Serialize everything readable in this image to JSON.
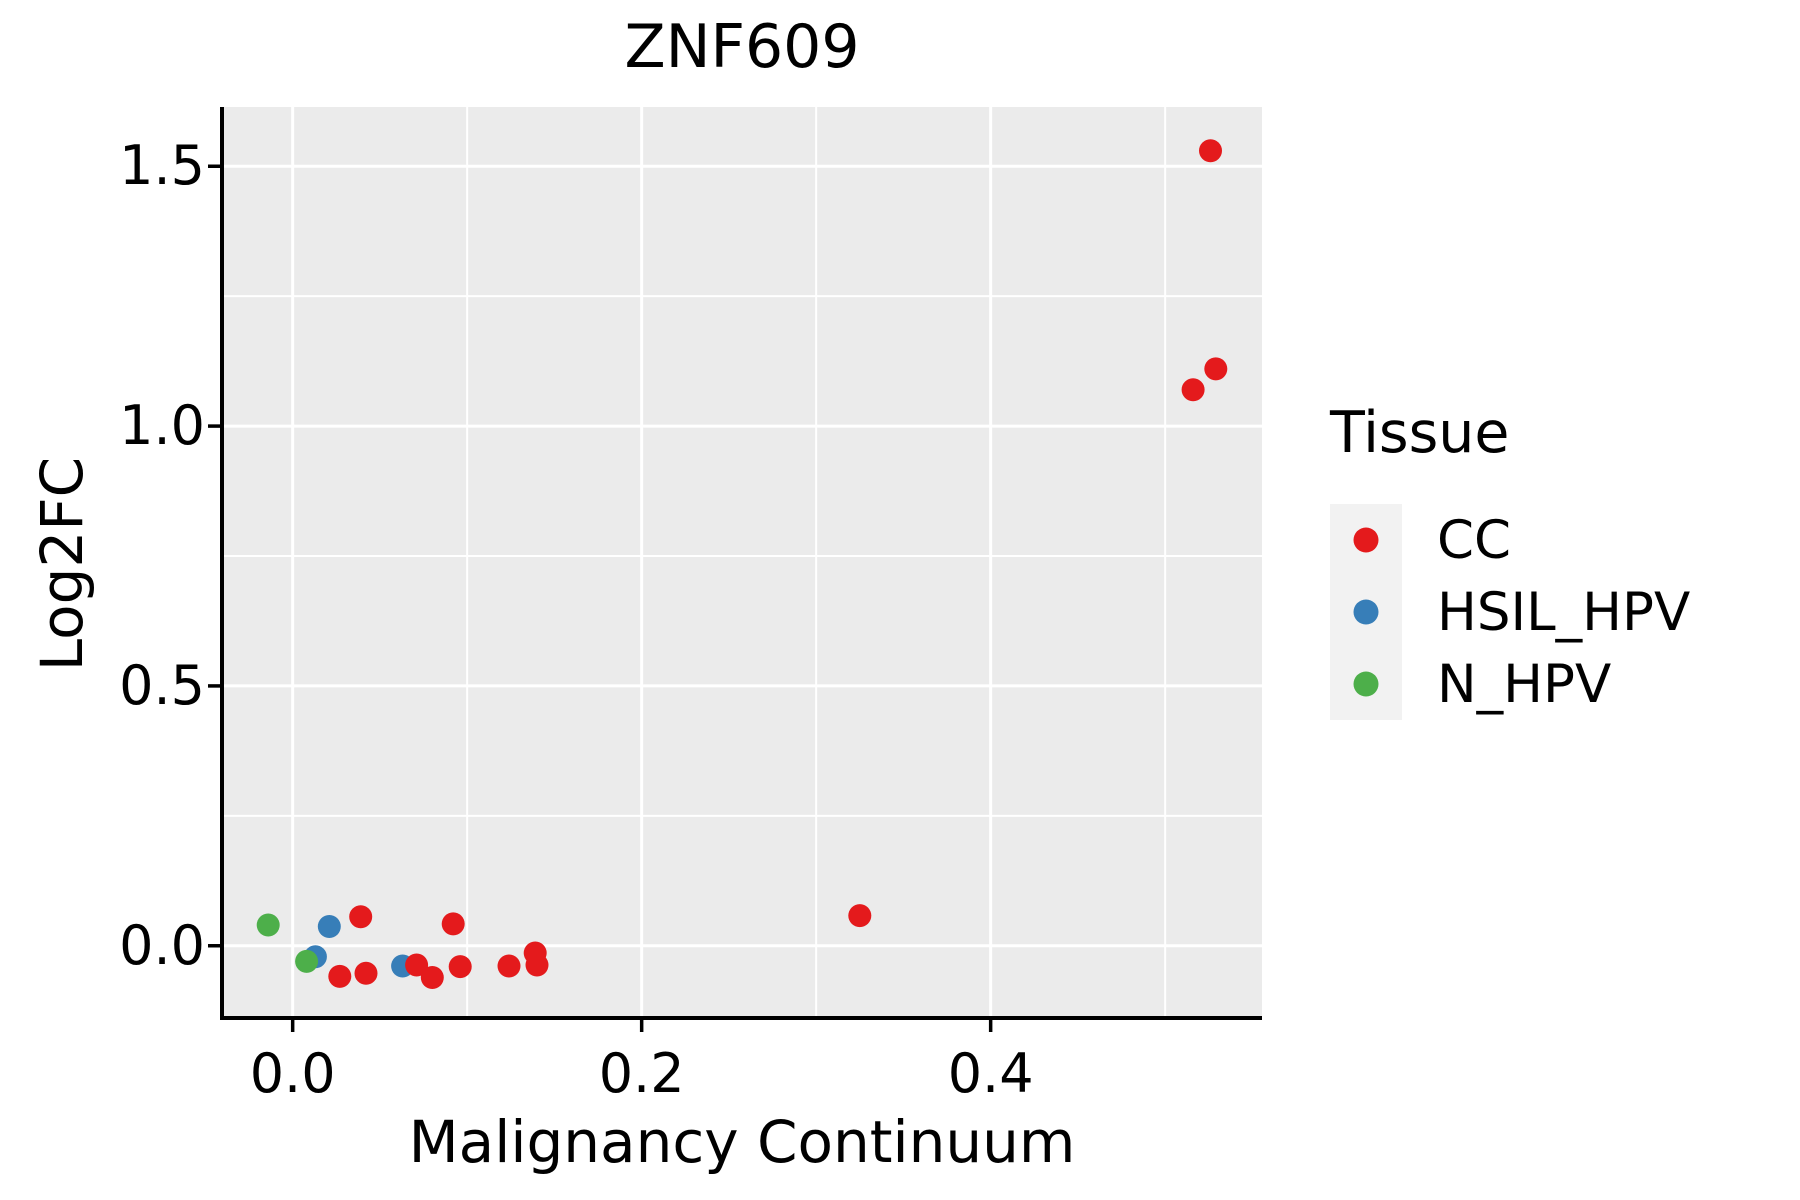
{
  "chart_data": {
    "type": "scatter",
    "title": "ZNF609",
    "xlabel": "Malignancy Continuum",
    "ylabel": "Log2FC",
    "xlim": [
      -0.0405,
      0.5555
    ],
    "ylim": [
      -0.139,
      1.614
    ],
    "x_ticks": [
      0.0,
      0.2,
      0.4
    ],
    "x_tick_labels": [
      "0.0",
      "0.2",
      "0.4"
    ],
    "x_minor_ticks": [
      0.1,
      0.3,
      0.5
    ],
    "y_ticks": [
      0.0,
      0.5,
      1.0,
      1.5
    ],
    "y_tick_labels": [
      "0.0",
      "0.5",
      "1.0",
      "1.5"
    ],
    "y_minor_ticks": [
      0.25,
      0.75,
      1.25
    ],
    "grid": true,
    "legend_position": "right",
    "point_radius": 11.5,
    "series": [
      {
        "name": "HSIL_HPV",
        "color": "#377eb8",
        "points": [
          [
            0.021,
            0.037
          ],
          [
            0.013,
            -0.021
          ],
          [
            0.063,
            -0.039
          ]
        ]
      },
      {
        "name": "CC",
        "color": "#e41a1c",
        "points": [
          [
            0.039,
            0.056
          ],
          [
            0.092,
            0.042
          ],
          [
            0.027,
            -0.059
          ],
          [
            0.042,
            -0.053
          ],
          [
            0.071,
            -0.037
          ],
          [
            0.08,
            -0.061
          ],
          [
            0.096,
            -0.04
          ],
          [
            0.124,
            -0.039
          ],
          [
            0.139,
            -0.014
          ],
          [
            0.14,
            -0.037
          ],
          [
            0.325,
            0.058
          ],
          [
            0.526,
            1.53
          ],
          [
            0.516,
            1.07
          ],
          [
            0.529,
            1.11
          ]
        ]
      },
      {
        "name": "N_HPV",
        "color": "#4daf4a",
        "points": [
          [
            -0.014,
            0.04
          ],
          [
            0.008,
            -0.03
          ]
        ]
      }
    ]
  },
  "legend": {
    "title": "Tissue",
    "items": [
      {
        "label": "CC",
        "color": "#e41a1c"
      },
      {
        "label": "HSIL_HPV",
        "color": "#377eb8"
      },
      {
        "label": "N_HPV",
        "color": "#4daf4a"
      }
    ]
  },
  "style": {
    "panel_bg": "#ebebeb",
    "grid_color": "#ffffff",
    "axis_color": "#000000",
    "legend_key_bg": "#f2f2f2"
  }
}
